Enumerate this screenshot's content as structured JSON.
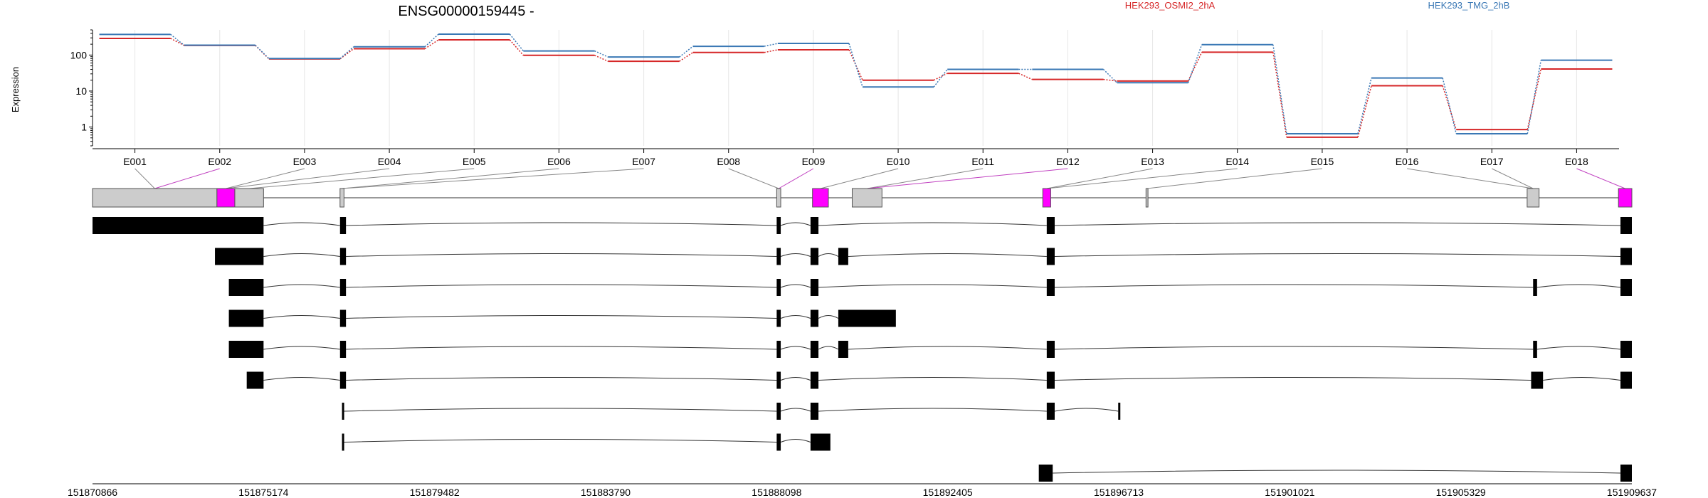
{
  "chart_data": {
    "type": "line",
    "title": "ENSG00000159445 -",
    "ylabel": "Expression",
    "yscale": "log",
    "ylim": [
      0.3,
      500
    ],
    "yticks": [
      "1",
      "10",
      "100"
    ],
    "grid": true,
    "legend_placement": "top-right",
    "categories": [
      "E001",
      "E002",
      "E003",
      "E004",
      "E005",
      "E006",
      "E007",
      "E008",
      "E009",
      "E010",
      "E011",
      "E012",
      "E013",
      "E014",
      "E015",
      "E016",
      "E017",
      "E018"
    ],
    "series": [
      {
        "name": "HEK293_OSMI2_2hA",
        "color": "#d62728",
        "values": [
          290,
          185,
          78,
          150,
          265,
          98,
          67,
          118,
          140,
          20,
          31,
          21,
          19,
          120,
          0.52,
          14,
          0.85,
          41
        ]
      },
      {
        "name": "HEK293_TMG_2hB",
        "color": "#3a78b5",
        "values": [
          375,
          188,
          80,
          170,
          380,
          130,
          88,
          175,
          210,
          13,
          40,
          40,
          17,
          195,
          0.65,
          23,
          0.65,
          72
        ]
      }
    ],
    "gene_model": {
      "exons_span": [
        [
          151870866,
          151874000
        ],
        [
          151874000,
          151874450
        ],
        [
          151874450,
          151875174
        ],
        [
          151877100,
          151877200
        ],
        [
          151888098,
          151888200
        ],
        [
          151889000,
          151889400
        ],
        [
          151890000,
          151890750
        ],
        [
          151894800,
          151895000
        ],
        [
          151897400,
          151897450
        ],
        [
          151907000,
          151907300
        ],
        [
          151909300,
          151909637
        ]
      ],
      "highlight_color": "#ff00ff"
    },
    "transcripts": [
      {
        "blocks": [
          [
            151870866,
            151875174
          ],
          [
            151877100,
            151877250
          ],
          [
            151888098,
            151888200
          ],
          [
            151888950,
            151889150
          ],
          [
            151894900,
            151895100
          ],
          [
            151909350,
            151909637
          ]
        ]
      },
      {
        "blocks": [
          [
            151873950,
            151875174
          ],
          [
            151877100,
            151877250
          ],
          [
            151888098,
            151888200
          ],
          [
            151888950,
            151889150
          ],
          [
            151889650,
            151889900
          ],
          [
            151894900,
            151895100
          ],
          [
            151909350,
            151909637
          ]
        ]
      },
      {
        "blocks": [
          [
            151874300,
            151875174
          ],
          [
            151877100,
            151877250
          ],
          [
            151888098,
            151888200
          ],
          [
            151888950,
            151889150
          ],
          [
            151894900,
            151895100
          ],
          [
            151907150,
            151907250
          ],
          [
            151909350,
            151909637
          ]
        ]
      },
      {
        "blocks": [
          [
            151874300,
            151875174
          ],
          [
            151877100,
            151877250
          ],
          [
            151888098,
            151888200
          ],
          [
            151888950,
            151889150
          ],
          [
            151889650,
            151891100
          ]
        ]
      },
      {
        "blocks": [
          [
            151874300,
            151875174
          ],
          [
            151877100,
            151877250
          ],
          [
            151888098,
            151888200
          ],
          [
            151888950,
            151889150
          ],
          [
            151889650,
            151889900
          ],
          [
            151894900,
            151895100
          ],
          [
            151907150,
            151907250
          ],
          [
            151909350,
            151909637
          ]
        ]
      },
      {
        "blocks": [
          [
            151874750,
            151875174
          ],
          [
            151877100,
            151877250
          ],
          [
            151888098,
            151888200
          ],
          [
            151888950,
            151889150
          ],
          [
            151894900,
            151895100
          ],
          [
            151907100,
            151907400
          ],
          [
            151909350,
            151909637
          ]
        ]
      },
      {
        "blocks": [
          [
            151877150,
            151877200
          ],
          [
            151888098,
            151888200
          ],
          [
            151888950,
            151889150
          ],
          [
            151894900,
            151895100
          ],
          [
            151896700,
            151896730
          ]
        ]
      },
      {
        "blocks": [
          [
            151877150,
            151877200
          ],
          [
            151888098,
            151888200
          ],
          [
            151888950,
            151889450
          ]
        ]
      },
      {
        "blocks": [
          [
            151894700,
            151895050
          ],
          [
            151909350,
            151909637
          ]
        ]
      }
    ],
    "x_ticks": [
      "151870866",
      "151875174",
      "151879482",
      "151883790",
      "151888098",
      "151892405",
      "151896713",
      "151901021",
      "151905329",
      "151909637"
    ],
    "x_range": [
      151870866,
      151909637
    ]
  }
}
